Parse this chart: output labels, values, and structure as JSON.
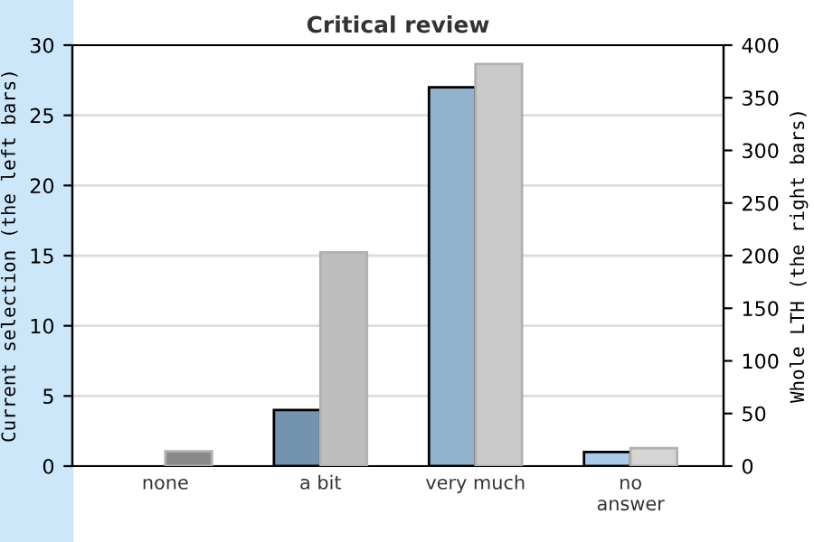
{
  "chart_data": {
    "type": "bar",
    "title": "Critical review",
    "categories": [
      "none",
      "a bit",
      "very much",
      "no\nanswer"
    ],
    "series": [
      {
        "colors": [
          "#888888",
          "#7393ae",
          "#92b1cc",
          "#a9cbe8"
        ],
        "values": [
          0,
          4,
          27,
          1
        ]
      },
      {
        "axis": "y2",
        "colors": [
          "#888888",
          "#bebebe",
          "#cacaca",
          "#d5d5d5"
        ],
        "values": [
          14,
          203,
          382,
          17
        ]
      }
    ],
    "ylabel": "Current selection (the left bars)",
    "y2label": "Whole LTH (the right bars)",
    "ylim": [
      0,
      30
    ],
    "yticks": [
      0,
      5,
      10,
      15,
      20,
      25,
      30
    ],
    "y2lim": [
      0,
      400
    ],
    "y2ticks": [
      0,
      50,
      100,
      150,
      200,
      250,
      300,
      350,
      400
    ],
    "grid": "y"
  }
}
